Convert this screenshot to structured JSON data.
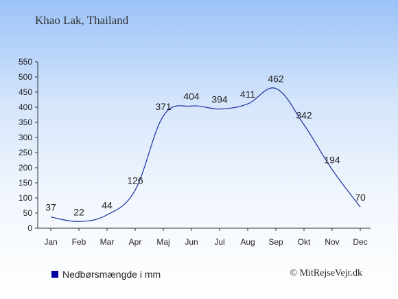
{
  "location": "Khao Lak, Thailand",
  "credit": "© MitRejseVejr.dk",
  "colors": {
    "line": "#1a2fa0",
    "axis": "#333333",
    "text": "#222222",
    "legend_swatch": "#0000a0"
  },
  "chart_data": {
    "type": "line",
    "categories": [
      "Jan",
      "Feb",
      "Mar",
      "Apr",
      "Maj",
      "Jun",
      "Jul",
      "Aug",
      "Sep",
      "Okt",
      "Nov",
      "Dec"
    ],
    "series": [
      {
        "name": "Nedbørsmængde i mm",
        "values": [
          37,
          22,
          44,
          126,
          371,
          404,
          394,
          411,
          462,
          342,
          194,
          70
        ]
      }
    ],
    "data_labels": [
      "37",
      "22",
      "44",
      "126",
      "371",
      "404",
      "394",
      "411",
      "462",
      "342",
      "194",
      "70"
    ],
    "ylim": [
      0,
      550
    ],
    "yticks": [
      0,
      50,
      100,
      150,
      200,
      250,
      300,
      350,
      400,
      450,
      500,
      550
    ],
    "grid": false,
    "legend_position": "bottom-left"
  }
}
